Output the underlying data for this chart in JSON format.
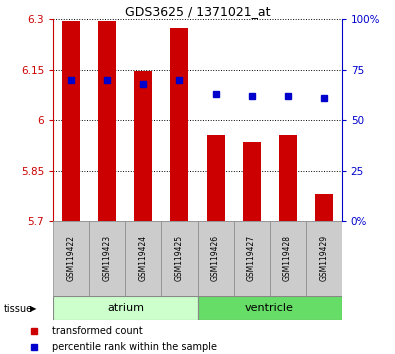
{
  "title": "GDS3625 / 1371021_at",
  "samples": [
    "GSM119422",
    "GSM119423",
    "GSM119424",
    "GSM119425",
    "GSM119426",
    "GSM119427",
    "GSM119428",
    "GSM119429"
  ],
  "transformed_counts": [
    6.295,
    6.295,
    6.147,
    6.275,
    5.955,
    5.935,
    5.955,
    5.78
  ],
  "percentile_ranks": [
    70,
    70,
    68,
    70,
    63,
    62,
    62,
    61
  ],
  "ylim_left": [
    5.7,
    6.3
  ],
  "ylim_right": [
    0,
    100
  ],
  "yticks_left": [
    5.7,
    5.85,
    6.0,
    6.15,
    6.3
  ],
  "yticks_right": [
    0,
    25,
    50,
    75,
    100
  ],
  "ytick_labels_left": [
    "5.7",
    "5.85",
    "6",
    "6.15",
    "6.3"
  ],
  "ytick_labels_right": [
    "0%",
    "25",
    "50",
    "75",
    "100%"
  ],
  "bar_color": "#cc0000",
  "dot_color": "#0000cc",
  "base_value": 5.7,
  "groups": [
    {
      "name": "atrium",
      "indices": [
        0,
        1,
        2,
        3
      ],
      "color": "#ccffcc"
    },
    {
      "name": "ventricle",
      "indices": [
        4,
        5,
        6,
        7
      ],
      "color": "#66dd66"
    }
  ],
  "group_label_prefix": "tissue",
  "legend_entries": [
    {
      "label": "transformed count",
      "color": "#cc0000"
    },
    {
      "label": "percentile rank within the sample",
      "color": "#0000cc"
    }
  ],
  "tick_label_area_color": "#cccccc",
  "dotted_grid_color": "#000000",
  "right_axis_color": "#0000cc",
  "left_axis_color": "#cc0000",
  "bar_width": 0.5,
  "title_fontsize": 9,
  "axis_fontsize": 7.5,
  "sample_fontsize": 5.5,
  "group_fontsize": 8,
  "legend_fontsize": 7
}
